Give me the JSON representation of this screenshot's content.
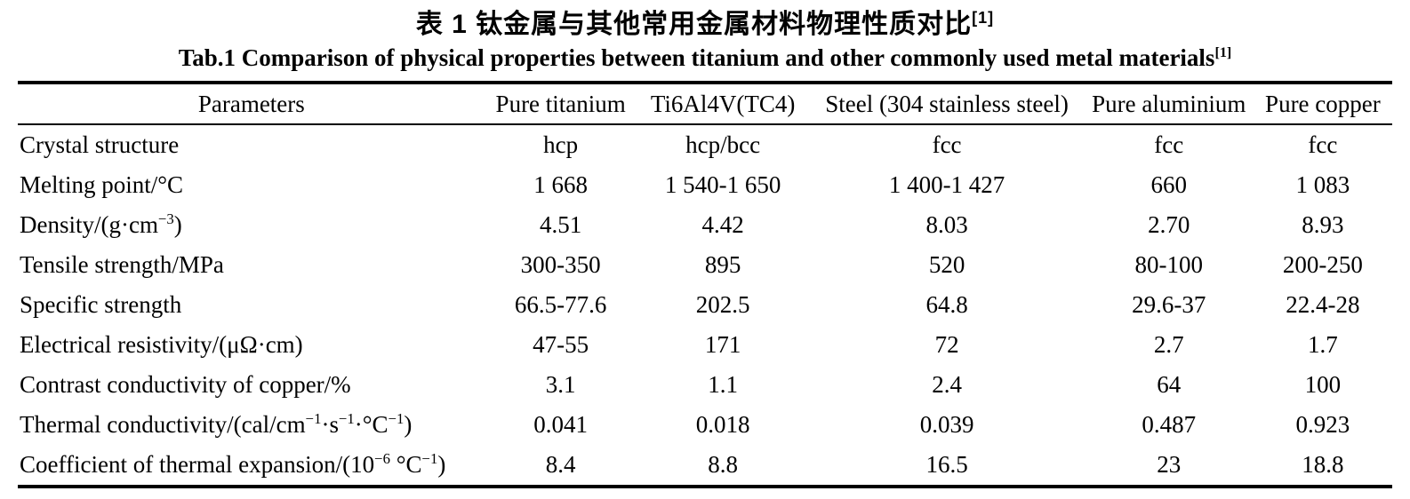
{
  "titles": {
    "zh": "表 1  钛金属与其他常用金属材料物理性质对比^{[1]}",
    "en": "Tab.1 Comparison of physical properties between titanium and other commonly used metal materials^{[1]}"
  },
  "table": {
    "headers": [
      "Parameters",
      "Pure titanium",
      "Ti6Al4V(TC4)",
      "Steel (304 stainless steel)",
      "Pure aluminium",
      "Pure copper"
    ],
    "rows": [
      {
        "label": "Crystal structure",
        "values": [
          "hcp",
          "hcp/bcc",
          "fcc",
          "fcc",
          "fcc"
        ]
      },
      {
        "label": "Melting point/°C",
        "values": [
          "1 668",
          "1 540-1 650",
          "1 400-1 427",
          "660",
          "1 083"
        ]
      },
      {
        "label": "Density/(g·cm^{−3})",
        "values": [
          "4.51",
          "4.42",
          "8.03",
          "2.70",
          "8.93"
        ]
      },
      {
        "label": "Tensile strength/MPa",
        "values": [
          "300-350",
          "895",
          "520",
          "80-100",
          "200-250"
        ]
      },
      {
        "label": "Specific strength",
        "values": [
          "66.5-77.6",
          "202.5",
          "64.8",
          "29.6-37",
          "22.4-28"
        ]
      },
      {
        "label": "Electrical resistivity/(μΩ·cm)",
        "values": [
          "47-55",
          "171",
          "72",
          "2.7",
          "1.7"
        ]
      },
      {
        "label": "Contrast conductivity of copper/%",
        "values": [
          "3.1",
          "1.1",
          "2.4",
          "64",
          "100"
        ]
      },
      {
        "label": "Thermal conductivity/(cal/cm^{−1}·s^{−1}·°C^{−1})",
        "values": [
          "0.041",
          "0.018",
          "0.039",
          "0.487",
          "0.923"
        ]
      },
      {
        "label": "Coefficient of thermal expansion/(10^{−6} °C^{−1})",
        "values": [
          "8.4",
          "8.8",
          "16.5",
          "23",
          "18.8"
        ]
      }
    ]
  },
  "colors": {
    "text": "#000000",
    "background": "#ffffff",
    "rule": "#000000"
  }
}
